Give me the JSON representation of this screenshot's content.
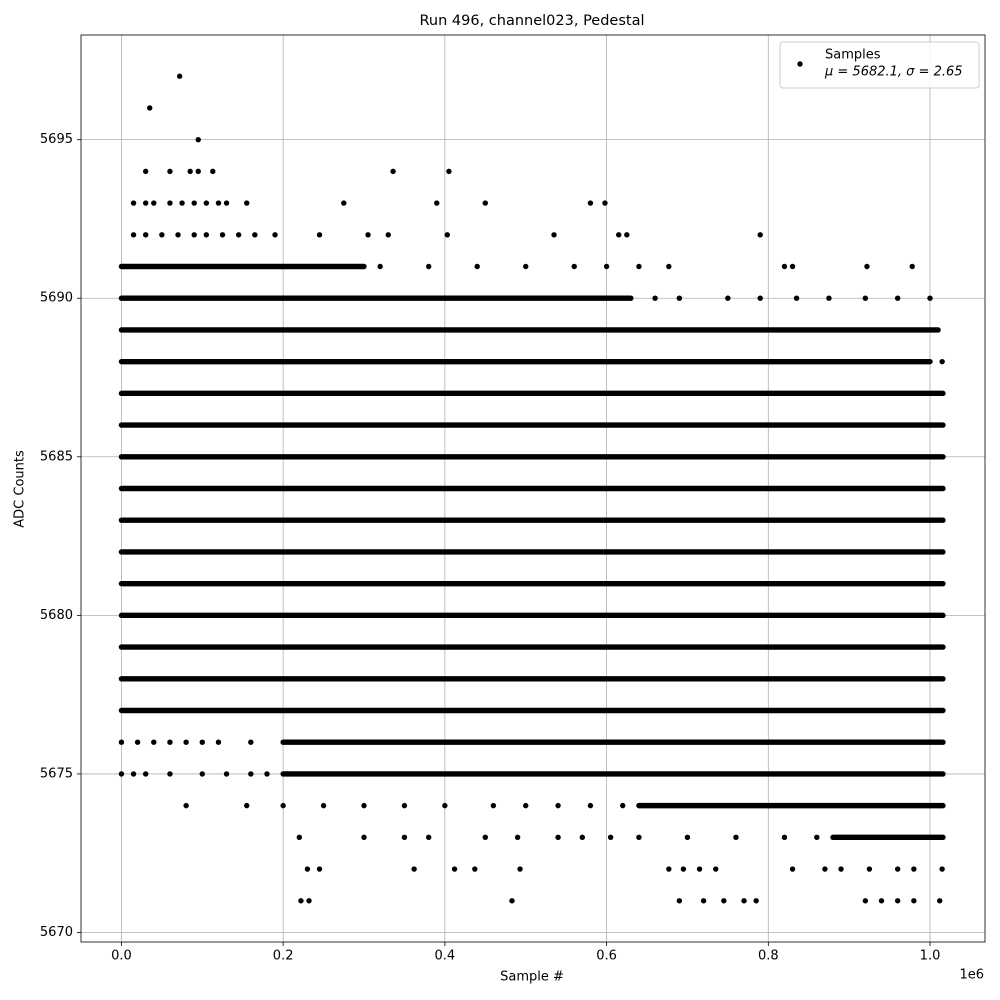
{
  "chart_data": {
    "type": "scatter",
    "title": "Run 496, channel023, Pedestal",
    "x_label": "Sample #",
    "y_label": "ADC Counts",
    "x_offset_label": "1e6",
    "xlim": [
      -50000,
      1068000
    ],
    "ylim": [
      5669.7,
      5698.3
    ],
    "xticks": [
      {
        "value": 0,
        "label": "0.0"
      },
      {
        "value": 200000,
        "label": "0.2"
      },
      {
        "value": 400000,
        "label": "0.4"
      },
      {
        "value": 600000,
        "label": "0.6"
      },
      {
        "value": 800000,
        "label": "0.8"
      },
      {
        "value": 1000000,
        "label": "1.0"
      }
    ],
    "yticks": [
      5670,
      5675,
      5680,
      5685,
      5690,
      5695
    ],
    "grid": true,
    "legend": "upper right",
    "legend_annotation": "μ = 5682.1, σ = 2.65",
    "series": [
      {
        "name": "Samples",
        "color": "#000000",
        "bands": [
          {
            "y": 5691,
            "x0": 0,
            "x1": 300000
          },
          {
            "y": 5690,
            "x0": 0,
            "x1": 630000
          },
          {
            "y": 5689,
            "x0": 0,
            "x1": 1010000
          },
          {
            "y": 5688,
            "x0": 0,
            "x1": 1000000
          },
          {
            "y": 5687,
            "x0": 0,
            "x1": 1016000
          },
          {
            "y": 5686,
            "x0": 0,
            "x1": 1016000
          },
          {
            "y": 5685,
            "x0": 0,
            "x1": 1016000
          },
          {
            "y": 5684,
            "x0": 0,
            "x1": 1016000
          },
          {
            "y": 5683,
            "x0": 0,
            "x1": 1016000
          },
          {
            "y": 5682,
            "x0": 0,
            "x1": 1016000
          },
          {
            "y": 5681,
            "x0": 0,
            "x1": 1016000
          },
          {
            "y": 5680,
            "x0": 0,
            "x1": 1016000
          },
          {
            "y": 5679,
            "x0": 0,
            "x1": 1016000
          },
          {
            "y": 5678,
            "x0": 0,
            "x1": 1016000
          },
          {
            "y": 5677,
            "x0": 0,
            "x1": 1016000
          },
          {
            "y": 5676,
            "x0": 200000,
            "x1": 1016000
          },
          {
            "y": 5675,
            "x0": 200000,
            "x1": 1016000
          },
          {
            "y": 5674,
            "x0": 640000,
            "x1": 1016000
          },
          {
            "y": 5673,
            "x0": 880000,
            "x1": 1016000
          }
        ],
        "x": [
          72000,
          35000,
          95000,
          30000,
          60000,
          85000,
          95000,
          113000,
          336000,
          405000,
          15000,
          30000,
          40000,
          60000,
          75000,
          90000,
          105000,
          120000,
          130000,
          155000,
          275000,
          390000,
          450000,
          580000,
          598000,
          15000,
          30000,
          50000,
          70000,
          90000,
          105000,
          125000,
          145000,
          165000,
          190000,
          245000,
          305000,
          330000,
          403000,
          535000,
          615000,
          625000,
          790000,
          320000,
          380000,
          440000,
          500000,
          560000,
          600000,
          640000,
          677000,
          820000,
          830000,
          922000,
          978000,
          660000,
          690000,
          750000,
          790000,
          835000,
          875000,
          920000,
          960000,
          1000000,
          1015000,
          0,
          20000,
          40000,
          60000,
          80000,
          100000,
          120000,
          160000,
          0,
          15000,
          30000,
          60000,
          100000,
          130000,
          160000,
          180000,
          80000,
          155000,
          200000,
          250000,
          300000,
          350000,
          400000,
          460000,
          500000,
          540000,
          580000,
          620000,
          220000,
          300000,
          350000,
          380000,
          450000,
          490000,
          540000,
          570000,
          605000,
          640000,
          700000,
          760000,
          820000,
          860000,
          230000,
          245000,
          362000,
          412000,
          437000,
          493000,
          677000,
          695000,
          715000,
          735000,
          830000,
          870000,
          890000,
          925000,
          960000,
          980000,
          1015000,
          222000,
          232000,
          483000,
          690000,
          720000,
          745000,
          770000,
          785000,
          920000,
          940000,
          960000,
          980000,
          1012000
        ],
        "values": [
          5697,
          5696,
          5695,
          5694,
          5694,
          5694,
          5694,
          5694,
          5694,
          5694,
          5693,
          5693,
          5693,
          5693,
          5693,
          5693,
          5693,
          5693,
          5693,
          5693,
          5693,
          5693,
          5693,
          5693,
          5693,
          5692,
          5692,
          5692,
          5692,
          5692,
          5692,
          5692,
          5692,
          5692,
          5692,
          5692,
          5692,
          5692,
          5692,
          5692,
          5692,
          5692,
          5692,
          5691,
          5691,
          5691,
          5691,
          5691,
          5691,
          5691,
          5691,
          5691,
          5691,
          5691,
          5691,
          5690,
          5690,
          5690,
          5690,
          5690,
          5690,
          5690,
          5690,
          5690,
          5688,
          5676,
          5676,
          5676,
          5676,
          5676,
          5676,
          5676,
          5676,
          5675,
          5675,
          5675,
          5675,
          5675,
          5675,
          5675,
          5675,
          5674,
          5674,
          5674,
          5674,
          5674,
          5674,
          5674,
          5674,
          5674,
          5674,
          5674,
          5674,
          5673,
          5673,
          5673,
          5673,
          5673,
          5673,
          5673,
          5673,
          5673,
          5673,
          5673,
          5673,
          5673,
          5673,
          5672,
          5672,
          5672,
          5672,
          5672,
          5672,
          5672,
          5672,
          5672,
          5672,
          5672,
          5672,
          5672,
          5672,
          5672,
          5672,
          5672,
          5671,
          5671,
          5671,
          5671,
          5671,
          5671,
          5671,
          5671,
          5671,
          5671,
          5671,
          5671,
          5671
        ]
      }
    ]
  }
}
